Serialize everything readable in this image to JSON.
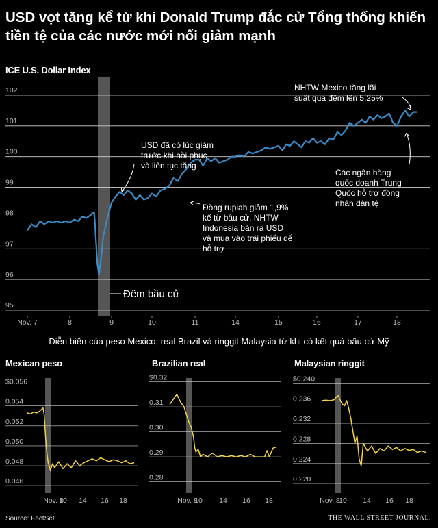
{
  "headline": "USD vọt tăng kể từ khi Donald Trump đắc cử Tổng thống khiến tiền tệ của các nước mới nổi giảm mạnh",
  "subheading": "Diễn biến của peso Mexico, real Brazil và ringgit Malaysia từ khi có kết quả bầu cử Mỹ",
  "source": "Source: FactSet",
  "publisher": "THE WALL STREET JOURNAL.",
  "colors": {
    "background": "#000000",
    "main_line": "#3a8cc8",
    "small_line": "#f3d44a",
    "election_band": "#555555",
    "grid": "#cfcfcf"
  },
  "chart_data": [
    {
      "type": "line",
      "title": "ICE U.S. Dollar Index",
      "x_ticks": [
        {
          "x": 7,
          "label": "Nov. 7"
        },
        {
          "x": 8,
          "label": "8"
        },
        {
          "x": 9,
          "label": "9"
        },
        {
          "x": 10,
          "label": "10"
        },
        {
          "x": 11,
          "label": "11"
        },
        {
          "x": 14,
          "label": "14"
        },
        {
          "x": 15,
          "label": "15"
        },
        {
          "x": 16,
          "label": "16"
        },
        {
          "x": 17,
          "label": "17"
        },
        {
          "x": 18,
          "label": "18"
        }
      ],
      "y_ticks": [
        "102",
        "101",
        "100",
        "99",
        "98",
        "97",
        "96",
        "95"
      ],
      "ylim": [
        94.8,
        102.6
      ],
      "grid": true,
      "election_band_label": "Đêm bầu cử",
      "series": [
        {
          "x": [
            0.0,
            0.1,
            0.2,
            0.3,
            0.4,
            0.5,
            0.6,
            0.7,
            0.8,
            0.9,
            1.0,
            1.1,
            1.2,
            1.3,
            1.4,
            1.5,
            1.58,
            1.6,
            1.63,
            1.66,
            1.7,
            1.75,
            1.8,
            1.85,
            1.9,
            2.0,
            2.1,
            2.2,
            2.3,
            2.4,
            2.5,
            2.6,
            2.7,
            2.8,
            2.9,
            3.0,
            3.1,
            3.2,
            3.3,
            3.4,
            3.5,
            3.6,
            3.7,
            3.8,
            3.9,
            4.0,
            4.1,
            4.2,
            4.3,
            4.4,
            4.5,
            4.6,
            4.7,
            4.8,
            4.9,
            5.0,
            5.1,
            5.2,
            5.3,
            5.4,
            5.5,
            5.6,
            5.7,
            5.8,
            5.9,
            6.0,
            6.1,
            6.2,
            6.3,
            6.4,
            6.5,
            6.6,
            6.7,
            6.8,
            6.9,
            7.0,
            7.1,
            7.2,
            7.3,
            7.4,
            7.5,
            7.6,
            7.7,
            7.8,
            7.9,
            8.0,
            8.1,
            8.2,
            8.3,
            8.4,
            8.5,
            8.6,
            8.7,
            8.8,
            8.9,
            9.0,
            9.1,
            9.2,
            9.3,
            9.4,
            9.5
          ],
          "values": [
            97.6,
            97.8,
            97.7,
            97.9,
            97.8,
            97.9,
            97.85,
            97.9,
            97.85,
            97.9,
            97.85,
            97.95,
            97.9,
            98.05,
            98.0,
            98.1,
            98.2,
            97.9,
            97.2,
            96.5,
            96.15,
            96.7,
            97.4,
            97.7,
            98.0,
            98.5,
            98.7,
            98.85,
            98.75,
            98.9,
            98.8,
            98.6,
            98.75,
            98.6,
            98.65,
            98.8,
            98.7,
            98.9,
            98.95,
            99.05,
            99.3,
            99.2,
            99.45,
            99.6,
            99.8,
            99.9,
            99.9,
            99.7,
            99.95,
            99.85,
            99.95,
            99.8,
            99.85,
            99.9,
            100.0,
            100.0,
            100.05,
            100.0,
            100.15,
            100.1,
            100.15,
            100.2,
            100.3,
            100.25,
            100.3,
            100.35,
            100.2,
            100.4,
            100.35,
            100.5,
            100.4,
            100.3,
            100.5,
            100.45,
            100.6,
            100.45,
            100.5,
            100.4,
            100.6,
            100.55,
            100.8,
            100.7,
            100.85,
            101.1,
            101.0,
            101.1,
            101.2,
            101.1,
            101.3,
            101.2,
            101.35,
            101.25,
            101.3,
            101.4,
            101.1,
            101.0,
            101.3,
            101.5,
            101.3,
            101.45,
            101.45
          ]
        }
      ],
      "annotations": [
        "NHTW Mexico tăng lãi suất qua đêm lên 5,25%",
        "USD đã có lúc giảm trước khi hồi phục và liên tục tăng",
        "Các ngân hàng quốc doanh Trung Quốc hỗ trợ đồng nhân dân tệ",
        "Đồng rupiah giảm 1,9% kể từ bầu cử, NHTW Indonesia bán ra USD và mua vào trái phiếu để hỗ trợ"
      ]
    },
    {
      "type": "line",
      "title": "Mexican peso",
      "y_ticks": [
        "$0.056",
        "0.054",
        "0.052",
        "0.050",
        "0.048",
        "0.046"
      ],
      "ylim": [
        0.0458,
        0.0568
      ],
      "x_ticks": [
        "Nov. 8",
        "10",
        "14",
        "16",
        "18"
      ],
      "series": [
        {
          "x": [
            0.0,
            0.15,
            0.3,
            0.45,
            0.6,
            0.7,
            0.75,
            0.8,
            0.85,
            0.9,
            0.95,
            1.0,
            1.05,
            1.1,
            1.2,
            1.3,
            1.5,
            1.7,
            1.9,
            2.1,
            2.3,
            2.5,
            2.7,
            2.9,
            3.1,
            3.3,
            3.5,
            3.7,
            3.9,
            4.1,
            4.3,
            4.5,
            4.7,
            4.9,
            5.1
          ],
          "values": [
            0.0533,
            0.0532,
            0.0534,
            0.0533,
            0.0535,
            0.0537,
            0.0538,
            0.0532,
            0.0515,
            0.05,
            0.049,
            0.0482,
            0.048,
            0.0475,
            0.0482,
            0.0478,
            0.0484,
            0.0477,
            0.0482,
            0.0478,
            0.0485,
            0.048,
            0.0483,
            0.0485,
            0.0487,
            0.0485,
            0.0488,
            0.0486,
            0.0484,
            0.0486,
            0.0485,
            0.0483,
            0.0485,
            0.0482,
            0.0483
          ]
        }
      ]
    },
    {
      "type": "line",
      "title": "Brazilian real",
      "y_ticks": [
        "$0.32",
        "0.31",
        "0.30",
        "0.29",
        "0.28"
      ],
      "ylim": [
        0.2777,
        0.3215
      ],
      "x_ticks": [
        "Nov. 8",
        "10",
        "14",
        "16",
        "18"
      ],
      "series": [
        {
          "x": [
            0.0,
            0.15,
            0.3,
            0.45,
            0.6,
            0.7,
            0.8,
            0.9,
            1.0,
            1.05,
            1.1,
            1.2,
            1.3,
            1.4,
            1.6,
            1.8,
            2.0,
            2.2,
            2.4,
            2.6,
            2.8,
            3.0,
            3.2,
            3.4,
            3.6,
            3.8,
            4.0,
            4.1,
            4.2,
            4.35,
            4.5
          ],
          "values": [
            0.311,
            0.313,
            0.315,
            0.312,
            0.31,
            0.307,
            0.304,
            0.302,
            0.298,
            0.294,
            0.292,
            0.293,
            0.29,
            0.291,
            0.29,
            0.2915,
            0.29,
            0.2905,
            0.29,
            0.2905,
            0.29,
            0.2905,
            0.29,
            0.291,
            0.29,
            0.29,
            0.29,
            0.2925,
            0.29,
            0.2935,
            0.294
          ]
        }
      ]
    },
    {
      "type": "line",
      "title": "Malaysian ringgit",
      "y_ticks": [
        "$0.240",
        "0.236",
        "0.232",
        "0.228",
        "0.224",
        "0.220"
      ],
      "ylim": [
        0.2192,
        0.241
      ],
      "x_ticks": [
        "Nov. 8",
        "10",
        "14",
        "16",
        "18"
      ],
      "series": [
        {
          "x": [
            0.0,
            0.2,
            0.4,
            0.6,
            0.7,
            0.8,
            0.9,
            1.0,
            1.1,
            1.2,
            1.3,
            1.4,
            1.5,
            1.6,
            1.7,
            1.8,
            1.9,
            2.0,
            2.2,
            2.4,
            2.6,
            2.8,
            3.0,
            3.2,
            3.4,
            3.6,
            3.8,
            4.0,
            4.2,
            4.4,
            4.6,
            4.8,
            5.0
          ],
          "values": [
            0.2365,
            0.2366,
            0.2365,
            0.2367,
            0.2372,
            0.2375,
            0.2365,
            0.2358,
            0.2355,
            0.2365,
            0.235,
            0.233,
            0.2305,
            0.228,
            0.2295,
            0.225,
            0.2235,
            0.228,
            0.2265,
            0.2275,
            0.226,
            0.227,
            0.2265,
            0.2275,
            0.2268,
            0.2272,
            0.2265,
            0.227,
            0.2266,
            0.2268,
            0.2262,
            0.2265,
            0.2262
          ]
        }
      ]
    }
  ]
}
